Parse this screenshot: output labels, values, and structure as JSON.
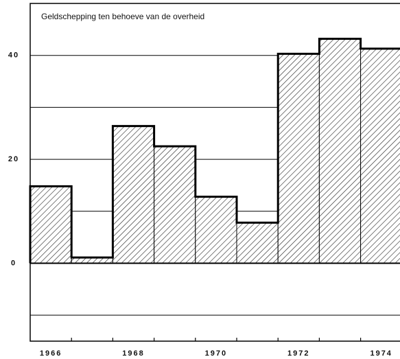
{
  "chart_data": {
    "type": "bar",
    "title": "Geldschepping ten behoeve van de overheid",
    "categories": [
      "1966",
      null,
      "1968",
      null,
      "1970",
      null,
      "1972",
      null,
      "1974"
    ],
    "values": [
      14.8,
      1.1,
      26.4,
      22.5,
      12.8,
      7.8,
      40.3,
      43.2,
      41.3
    ],
    "color": "#000000",
    "ylim": [
      -15,
      50
    ],
    "yticks": [
      0,
      20,
      40
    ],
    "minor_yticks": [
      -10,
      10,
      30
    ],
    "grid": true,
    "hatch": true
  }
}
